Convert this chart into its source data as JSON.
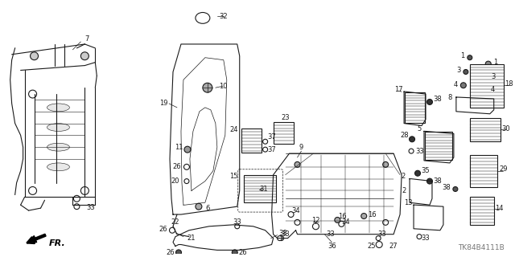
{
  "diagram_code": "TK84B4111B",
  "fr_label": "FR.",
  "background": "#ffffff",
  "line_color": "#1a1a1a",
  "label_fontsize": 6.0,
  "diagram_code_fontsize": 6.5
}
